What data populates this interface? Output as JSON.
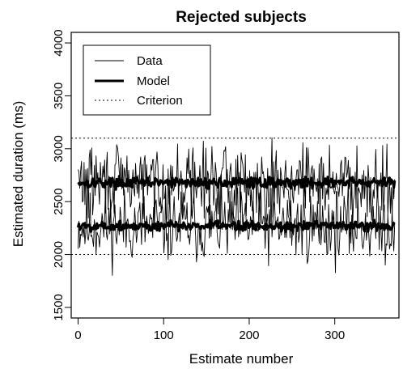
{
  "chart_data": {
    "type": "line",
    "title": "Rejected subjects",
    "xlabel": "Estimate number",
    "ylabel": "Estimated duration (ms)",
    "xlim": [
      -8,
      375
    ],
    "ylim": [
      1400,
      4100
    ],
    "xticks": [
      0,
      100,
      200,
      300
    ],
    "yticks": [
      1500,
      2000,
      2500,
      3000,
      3500,
      4000
    ],
    "legend": {
      "position": "top-left",
      "entries": [
        {
          "label": "Data",
          "style": "thin-solid"
        },
        {
          "label": "Model",
          "style": "thick-solid"
        },
        {
          "label": "Criterion",
          "style": "dotted"
        }
      ]
    },
    "criterion_lines": [
      2000,
      3100
    ],
    "series": [
      {
        "role": "data",
        "style": "thin-solid",
        "generator": {
          "n": 370,
          "base": 2270,
          "amplitude": 320,
          "seed": 11
        },
        "x_range": [
          0,
          370
        ]
      },
      {
        "role": "data",
        "style": "thin-solid",
        "generator": {
          "n": 370,
          "base": 2690,
          "amplitude": 320,
          "seed": 29
        },
        "x_range": [
          0,
          370
        ]
      },
      {
        "role": "model",
        "style": "thick-solid",
        "generator": {
          "n": 370,
          "base": 2270,
          "amplitude": 45,
          "seed": 5
        },
        "x_range": [
          0,
          370
        ]
      },
      {
        "role": "model",
        "style": "thick-solid",
        "generator": {
          "n": 370,
          "base": 2680,
          "amplitude": 45,
          "seed": 17
        },
        "x_range": [
          0,
          370
        ]
      }
    ]
  }
}
